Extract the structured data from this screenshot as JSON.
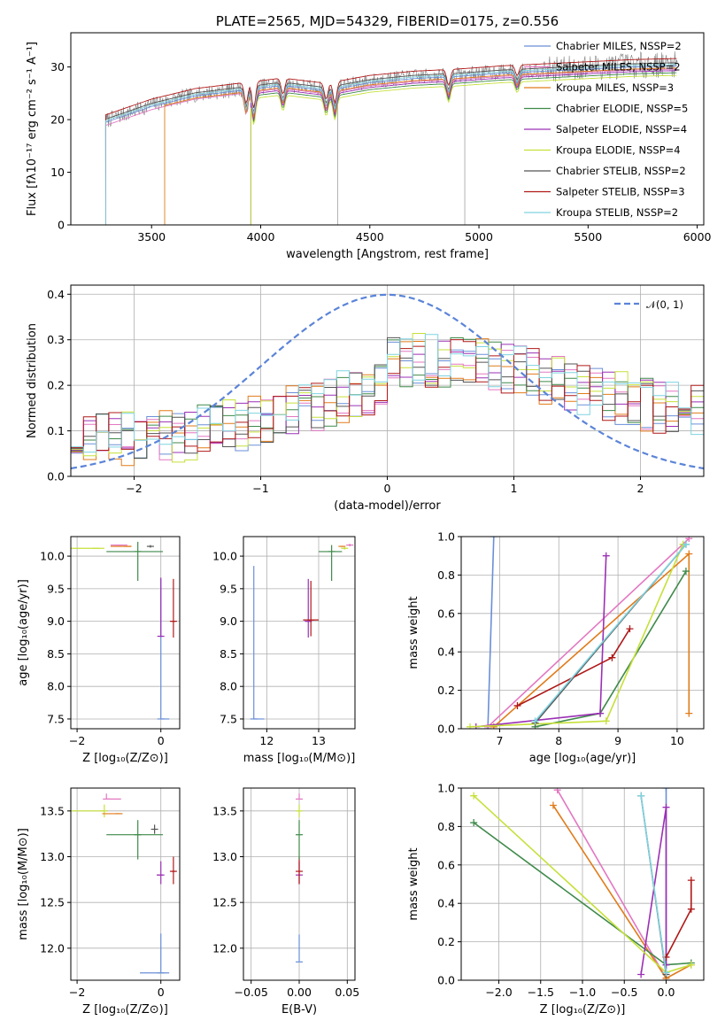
{
  "chart_data": [
    {
      "id": "spectrum",
      "type": "line",
      "title": "PLATE=2565, MJD=54329, FIBERID=0175, z=0.556",
      "xlabel": "wavelength [Angstrom, rest frame]",
      "ylabel": "Flux [fλ10⁻¹⁷ erg cm⁻² s⁻¹ A⁻¹]",
      "xlim": [
        3130,
        6030
      ],
      "ylim": [
        0,
        36.5
      ],
      "xticks": [
        3500,
        4000,
        4500,
        5000,
        5500,
        6000
      ],
      "yticks": [
        0,
        10,
        20,
        30
      ],
      "grid": false,
      "legend_position": "top-right",
      "data_range": [
        3290,
        5910
      ],
      "series": [
        {
          "name": "Chabrier MILES, NSSP=2",
          "color": "#6a8fd8",
          "start": 3290,
          "offset": 0.0
        },
        {
          "name": "Salpeter MILES, NSSP=2",
          "color": "#e377c2",
          "start": 3290,
          "offset": -0.6
        },
        {
          "name": "Kroupa MILES, NSSP=3",
          "color": "#e07b1a",
          "start": 3560,
          "offset": -0.4
        },
        {
          "name": "Chabrier ELODIE, NSSP=5",
          "color": "#3f8a4a",
          "start": 3955,
          "offset": -1.3
        },
        {
          "name": "Salpeter ELODIE, NSSP=4",
          "color": "#9b30b5",
          "start": 3955,
          "offset": -0.9
        },
        {
          "name": "Kroupa ELODIE, NSSP=4",
          "color": "#c6e03a",
          "start": 3955,
          "offset": -1.8
        },
        {
          "name": "Chabrier STELIB, NSSP=2",
          "color": "#555555",
          "start": 3290,
          "offset": 0.6
        },
        {
          "name": "Salpeter STELIB, NSSP=3",
          "color": "#b01818",
          "start": 3290,
          "offset": 1.4
        },
        {
          "name": "Kroupa STELIB, NSSP=2",
          "color": "#7fd3e0",
          "start": 3290,
          "offset": 0.3
        }
      ],
      "continuum": {
        "x": [
          3290,
          3500,
          3700,
          3900,
          4000,
          4100,
          4300,
          4500,
          4700,
          4900,
          5100,
          5300,
          5500,
          5700,
          5900
        ],
        "y": [
          19.5,
          22.5,
          24.5,
          25.5,
          26.0,
          26.5,
          25.5,
          27.0,
          27.8,
          28.2,
          28.8,
          29.2,
          29.6,
          30.0,
          30.2
        ]
      },
      "absorption_lines": [
        {
          "x": 3933,
          "depth": 4
        },
        {
          "x": 3968,
          "depth": 5
        },
        {
          "x": 4102,
          "depth": 3
        },
        {
          "x": 4300,
          "depth": 3
        },
        {
          "x": 4340,
          "depth": 4
        },
        {
          "x": 4861,
          "depth": 3
        },
        {
          "x": 5175,
          "depth": 2
        }
      ],
      "data_spikes": [
        {
          "x": 4353,
          "to": 0
        },
        {
          "x": 4935,
          "to": 0
        }
      ]
    },
    {
      "id": "residuals",
      "type": "line",
      "xlabel": "(data-model)/error",
      "ylabel": "Normed distribution",
      "xlim": [
        -2.5,
        2.5
      ],
      "ylim": [
        0,
        0.42
      ],
      "xticks": [
        -2,
        -1,
        0,
        1,
        2
      ],
      "yticks": [
        0.0,
        0.1,
        0.2,
        0.3,
        0.4
      ],
      "grid": true,
      "legend_position": "top-right",
      "gaussian": {
        "name": "𝒩(0, 1)",
        "color": "#5b84d8",
        "mean": 0,
        "sigma": 1
      },
      "bins": {
        "min": -2.5,
        "max": 2.5,
        "count": 50
      },
      "hist_colors": [
        "#6a8fd8",
        "#e377c2",
        "#e07b1a",
        "#3f8a4a",
        "#9b30b5",
        "#c6e03a",
        "#555555",
        "#b01818",
        "#7fd3e0"
      ]
    },
    {
      "id": "age-vs-Z",
      "type": "scatter",
      "xlabel": "Z [log₁₀(Z/Z⊙)]",
      "ylabel": "age  [log₁₀(age/yr)]",
      "xlim": [
        -2.15,
        0.45
      ],
      "ylim": [
        7.35,
        10.3
      ],
      "xticks": [
        -2,
        0
      ],
      "yticks": [
        7.5,
        8.0,
        8.5,
        9.0,
        9.5,
        10.0
      ],
      "grid": true,
      "points": [
        {
          "color": "#6a8fd8",
          "x": 0.0,
          "y": 7.5,
          "xerr": [
            0.0,
            0.2
          ],
          "yerr": [
            0.0,
            2.15
          ]
        },
        {
          "color": "#9b30b5",
          "x": 0.0,
          "y": 8.77,
          "xerr": [
            0.05,
            0.05
          ],
          "yerr": [
            0.0,
            0.9
          ]
        },
        {
          "color": "#b01818",
          "x": 0.3,
          "y": 9.0,
          "xerr": [
            0.05,
            0.05
          ],
          "yerr": [
            0.25,
            0.65
          ]
        },
        {
          "color": "#3f8a4a",
          "x": -0.55,
          "y": 10.07,
          "xerr": [
            0.75,
            0.6
          ],
          "yerr": [
            0.45,
            0.15
          ]
        },
        {
          "color": "#c6e03a",
          "x": -1.55,
          "y": 10.12,
          "xerr": [
            0.6,
            0.2
          ],
          "yerr": [
            0.0,
            0.0
          ]
        },
        {
          "color": "#e07b1a",
          "x": -0.8,
          "y": 10.15,
          "xerr": [
            0.4,
            0.1
          ],
          "yerr": [
            0.0,
            0.0
          ]
        },
        {
          "color": "#e377c2",
          "x": -1.0,
          "y": 10.17,
          "xerr": [
            0.2,
            0.2
          ],
          "yerr": [
            0.0,
            0.0
          ]
        },
        {
          "color": "#555555",
          "x": -0.25,
          "y": 10.15,
          "xerr": [
            0.02,
            0.02
          ],
          "yerr": [
            0.02,
            0.02
          ]
        }
      ]
    },
    {
      "id": "age-vs-mass",
      "type": "scatter",
      "xlabel": "mass [log₁₀(M/M⊙)]",
      "ylabel": "",
      "xlim": [
        11.55,
        13.7
      ],
      "ylim": [
        7.35,
        10.3
      ],
      "xticks": [
        12,
        13
      ],
      "yticks": [
        7.5,
        8.0,
        8.5,
        9.0,
        9.5,
        10.0
      ],
      "grid": true,
      "points": [
        {
          "color": "#6a8fd8",
          "x": 11.75,
          "y": 7.5,
          "xerr": [
            0.0,
            0.2
          ],
          "yerr": [
            0.0,
            2.35
          ]
        },
        {
          "color": "#9b30b5",
          "x": 12.8,
          "y": 9.0,
          "xerr": [
            0.05,
            0.05
          ],
          "yerr": [
            0.25,
            0.65
          ]
        },
        {
          "color": "#b01818",
          "x": 12.85,
          "y": 9.02,
          "xerr": [
            0.15,
            0.15
          ],
          "yerr": [
            0.25,
            0.6
          ]
        },
        {
          "color": "#3f8a4a",
          "x": 13.25,
          "y": 10.07,
          "xerr": [
            0.25,
            0.2
          ],
          "yerr": [
            0.45,
            0.1
          ]
        },
        {
          "color": "#c6e03a",
          "x": 13.5,
          "y": 10.12,
          "xerr": [
            0.02,
            0.02
          ],
          "yerr": [
            0.02,
            0.02
          ]
        },
        {
          "color": "#e07b1a",
          "x": 13.45,
          "y": 10.15,
          "xerr": [
            0.03,
            0.03
          ],
          "yerr": [
            0.0,
            0.0
          ]
        },
        {
          "color": "#e377c2",
          "x": 13.6,
          "y": 10.17,
          "xerr": [
            0.02,
            0.02
          ],
          "yerr": [
            0.02,
            0.02
          ]
        }
      ]
    },
    {
      "id": "weight-vs-age",
      "type": "line",
      "xlabel": "age  [log₁₀(age/yr)]",
      "ylabel": "mass weight",
      "xlim": [
        6.35,
        10.45
      ],
      "ylim": [
        0,
        1.0
      ],
      "xticks": [
        7,
        8,
        9,
        10
      ],
      "yticks": [
        0.0,
        0.2,
        0.4,
        0.6,
        0.8,
        1.0
      ],
      "grid": true,
      "series": [
        {
          "color": "#6a8fd8",
          "x": [
            6.8,
            6.9
          ],
          "y": [
            0.0,
            1.0
          ]
        },
        {
          "color": "#e377c2",
          "x": [
            6.8,
            10.2
          ],
          "y": [
            0.01,
            0.99
          ]
        },
        {
          "color": "#e07b1a",
          "x": [
            6.9,
            10.2,
            10.2
          ],
          "y": [
            0.01,
            0.91,
            0.08
          ]
        },
        {
          "color": "#3f8a4a",
          "x": [
            7.6,
            8.7,
            10.15
          ],
          "y": [
            0.01,
            0.08,
            0.82
          ]
        },
        {
          "color": "#9b30b5",
          "x": [
            6.6,
            8.7,
            8.8
          ],
          "y": [
            0.01,
            0.08,
            0.9
          ]
        },
        {
          "color": "#c6e03a",
          "x": [
            6.5,
            8.8,
            10.1
          ],
          "y": [
            0.01,
            0.04,
            0.96
          ]
        },
        {
          "color": "#555555",
          "x": [
            7.6,
            10.15
          ],
          "y": [
            0.03,
            0.96
          ]
        },
        {
          "color": "#b01818",
          "x": [
            7.3,
            8.9,
            9.2
          ],
          "y": [
            0.12,
            0.37,
            0.52
          ]
        },
        {
          "color": "#7fd3e0",
          "x": [
            7.6,
            10.15
          ],
          "y": [
            0.04,
            0.96
          ]
        }
      ]
    },
    {
      "id": "mass-vs-Z",
      "type": "scatter",
      "xlabel": "Z [log₁₀(Z/Z⊙)]",
      "ylabel": "mass [log₁₀(M/M⊙)]",
      "xlim": [
        -2.15,
        0.45
      ],
      "ylim": [
        11.65,
        13.75
      ],
      "xticks": [
        -2,
        0
      ],
      "yticks": [
        12.0,
        12.5,
        13.0,
        13.5
      ],
      "grid": true,
      "points": [
        {
          "color": "#6a8fd8",
          "x": 0.0,
          "y": 11.73,
          "xerr": [
            0.5,
            0.2
          ],
          "yerr": [
            0.0,
            0.43
          ]
        },
        {
          "color": "#9b30b5",
          "x": 0.0,
          "y": 12.8,
          "xerr": [
            0.1,
            0.05
          ],
          "yerr": [
            0.1,
            0.15
          ]
        },
        {
          "color": "#b01818",
          "x": 0.3,
          "y": 12.84,
          "xerr": [
            0.05,
            0.05
          ],
          "yerr": [
            0.14,
            0.16
          ]
        },
        {
          "color": "#3f8a4a",
          "x": -0.55,
          "y": 13.24,
          "xerr": [
            0.75,
            0.6
          ],
          "yerr": [
            0.27,
            0.16
          ]
        },
        {
          "color": "#c6e03a",
          "x": -1.35,
          "y": 13.5,
          "xerr": [
            0.8,
            0.0
          ],
          "yerr": [
            0.07,
            0.07
          ]
        },
        {
          "color": "#e07b1a",
          "x": -1.0,
          "y": 13.47,
          "xerr": [
            0.4,
            0.0
          ],
          "yerr": [
            0.0,
            0.0
          ]
        },
        {
          "color": "#e377c2",
          "x": -1.3,
          "y": 13.63,
          "xerr": [
            0.0,
            0.35
          ],
          "yerr": [
            0.0,
            0.06
          ]
        },
        {
          "color": "#555555",
          "x": -0.15,
          "y": 13.3,
          "xerr": [
            0.02,
            0.02
          ],
          "yerr": [
            0.05,
            0.05
          ]
        }
      ]
    },
    {
      "id": "mass-vs-EBV",
      "type": "scatter",
      "xlabel": "E(B-V)",
      "ylabel": "",
      "xlim": [
        -0.058,
        0.058
      ],
      "ylim": [
        11.65,
        13.75
      ],
      "xticks": [
        -0.05,
        0.0,
        0.05
      ],
      "yticks": [
        12.0,
        12.5,
        13.0,
        13.5
      ],
      "grid": true,
      "points": [
        {
          "color": "#6a8fd8",
          "x": 0.0,
          "y": 11.85,
          "xerr": [
            0.0,
            0.0
          ],
          "yerr": [
            0.0,
            0.3
          ]
        },
        {
          "color": "#9b30b5",
          "x": 0.0,
          "y": 12.8,
          "xerr": [
            0.0,
            0.0
          ],
          "yerr": [
            0.1,
            0.15
          ]
        },
        {
          "color": "#b01818",
          "x": 0.0,
          "y": 12.84,
          "xerr": [
            0.0,
            0.0
          ],
          "yerr": [
            0.14,
            0.16
          ]
        },
        {
          "color": "#3f8a4a",
          "x": 0.0,
          "y": 13.24,
          "xerr": [
            0.0,
            0.0
          ],
          "yerr": [
            0.27,
            0.16
          ]
        },
        {
          "color": "#c6e03a",
          "x": 0.0,
          "y": 13.5,
          "xerr": [
            0.0,
            0.0
          ],
          "yerr": [
            0.07,
            0.07
          ]
        },
        {
          "color": "#e377c2",
          "x": 0.0,
          "y": 13.63,
          "xerr": [
            0.0,
            0.0
          ],
          "yerr": [
            0.0,
            0.06
          ]
        }
      ]
    },
    {
      "id": "weight-vs-Z",
      "type": "line",
      "xlabel": "Z [log₁₀(Z/Z⊙)]",
      "ylabel": "mass weight",
      "xlim": [
        -2.45,
        0.45
      ],
      "ylim": [
        0,
        1.0
      ],
      "xticks": [
        -2.0,
        -1.5,
        -1.0,
        -0.5,
        0.0
      ],
      "yticks": [
        0.0,
        0.2,
        0.4,
        0.6,
        0.8,
        1.0
      ],
      "grid": true,
      "series": [
        {
          "color": "#6a8fd8",
          "x": [
            0.0,
            0.0
          ],
          "y": [
            0.0,
            1.0
          ]
        },
        {
          "color": "#e377c2",
          "x": [
            -1.3,
            0.0
          ],
          "y": [
            0.99,
            0.01
          ]
        },
        {
          "color": "#e07b1a",
          "x": [
            -1.35,
            0.0,
            0.3
          ],
          "y": [
            0.91,
            0.01,
            0.08
          ]
        },
        {
          "color": "#3f8a4a",
          "x": [
            -2.3,
            0.0,
            0.3
          ],
          "y": [
            0.82,
            0.08,
            0.09
          ]
        },
        {
          "color": "#9b30b5",
          "x": [
            -0.3,
            0.0,
            0.0
          ],
          "y": [
            0.03,
            0.9,
            0.08
          ]
        },
        {
          "color": "#c6e03a",
          "x": [
            -2.3,
            0.0,
            0.3
          ],
          "y": [
            0.96,
            0.04,
            0.08
          ]
        },
        {
          "color": "#555555",
          "x": [
            -0.3,
            0.0
          ],
          "y": [
            0.96,
            0.03
          ]
        },
        {
          "color": "#b01818",
          "x": [
            0.0,
            0.3,
            0.3
          ],
          "y": [
            0.12,
            0.37,
            0.52
          ]
        },
        {
          "color": "#7fd3e0",
          "x": [
            -0.3,
            0.0
          ],
          "y": [
            0.96,
            0.04
          ]
        }
      ]
    }
  ]
}
